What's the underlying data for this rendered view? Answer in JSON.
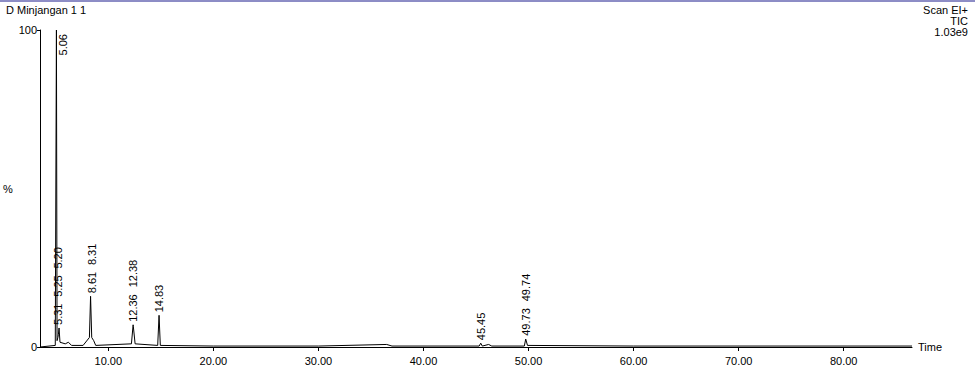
{
  "chart_data": {
    "type": "line",
    "title": "D Minjangan 1 1",
    "subtitle": [
      "Scan EI+",
      "TIC",
      "1.03e9"
    ],
    "x_label": "Time",
    "y_label": "%",
    "color": "#000000",
    "grid": false,
    "xlim": [
      3.5,
      86.5
    ],
    "xticks": [
      {
        "value": 10,
        "label": "10.00"
      },
      {
        "value": 20,
        "label": "20.00"
      },
      {
        "value": 30,
        "label": "30.00"
      },
      {
        "value": 40,
        "label": "40.00"
      },
      {
        "value": 50,
        "label": "50.00"
      },
      {
        "value": 60,
        "label": "60.00"
      },
      {
        "value": 70,
        "label": "70.00"
      },
      {
        "value": 80,
        "label": "80.00"
      }
    ],
    "ylim": [
      0,
      100
    ],
    "yticks": [
      0,
      100
    ],
    "x": [
      3.5,
      4.95,
      5.06,
      5.12,
      5.2,
      5.25,
      5.31,
      5.4,
      5.9,
      6.2,
      6.5,
      7.6,
      8.2,
      8.31,
      8.42,
      8.61,
      8.8,
      12.2,
      12.36,
      12.38,
      12.55,
      14.7,
      14.83,
      14.95,
      20,
      30,
      36.5,
      37,
      45.3,
      45.45,
      45.6,
      46.2,
      46.5,
      49.6,
      49.73,
      49.74,
      49.9,
      60,
      86.5
    ],
    "values": [
      0,
      0.5,
      100,
      2,
      3,
      4,
      6,
      1.5,
      1,
      1.5,
      0.5,
      0.5,
      3,
      16,
      3,
      2,
      0.5,
      1,
      7,
      6.5,
      1,
      0.5,
      10,
      0.5,
      0.3,
      0.3,
      0.8,
      0.3,
      0.3,
      1.2,
      0.3,
      0.8,
      0.3,
      0.3,
      2.5,
      2.6,
      0.5,
      0.3,
      0.3
    ],
    "annotations": [
      {
        "x": 5.06,
        "y": 100,
        "text": "5.06"
      },
      {
        "x": 5.31,
        "y": 6,
        "text": "5.31"
      },
      {
        "x": 5.25,
        "y": 4,
        "text": "5.25"
      },
      {
        "x": 5.2,
        "y": 3,
        "text": "5.20"
      },
      {
        "x": 8.61,
        "y": 2,
        "text": "8.61"
      },
      {
        "x": 8.31,
        "y": 16,
        "text": "8.31"
      },
      {
        "x": 12.36,
        "y": 7,
        "text": "12.36"
      },
      {
        "x": 12.38,
        "y": 6.5,
        "text": "12.38"
      },
      {
        "x": 14.83,
        "y": 10,
        "text": "14.83"
      },
      {
        "x": 45.45,
        "y": 1.2,
        "text": "45.45"
      },
      {
        "x": 49.73,
        "y": 2.5,
        "text": "49.73"
      },
      {
        "x": 49.74,
        "y": 2.6,
        "text": "49.74"
      }
    ]
  }
}
